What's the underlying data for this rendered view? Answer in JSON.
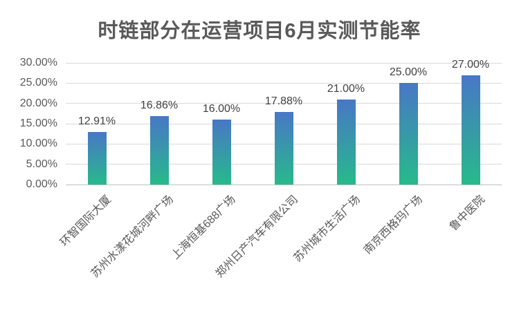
{
  "chart_data": {
    "type": "bar",
    "title": "时链部分在运营项目6月实测节能率",
    "categories": [
      "环智国际大厦",
      "苏州水漾花城河畔广场",
      "上海恒基688广场",
      "郑州日产汽车有限公司",
      "苏州城市生活广场",
      "南京西格玛广场",
      "鲁中医院"
    ],
    "values": [
      12.91,
      16.86,
      16.0,
      17.88,
      21.0,
      25.0,
      27.0
    ],
    "value_labels": [
      "12.91%",
      "16.86%",
      "16.00%",
      "17.88%",
      "21.00%",
      "25.00%",
      "27.00%"
    ],
    "y_ticks": [
      "0.00%",
      "5.00%",
      "10.00%",
      "15.00%",
      "20.00%",
      "25.00%",
      "30.00%"
    ],
    "ylim": [
      0,
      30
    ],
    "xlabel": "",
    "ylabel": "",
    "grid": true,
    "legend": false,
    "colors": {
      "bar_gradient_top": "#4877c6",
      "bar_gradient_bottom": "#27ba8b",
      "gridline": "#d9d9d9",
      "axis_line": "#bfbfbf",
      "title_text": "#595959",
      "value_label_text": "#404040",
      "tick_text": "#595959"
    }
  }
}
